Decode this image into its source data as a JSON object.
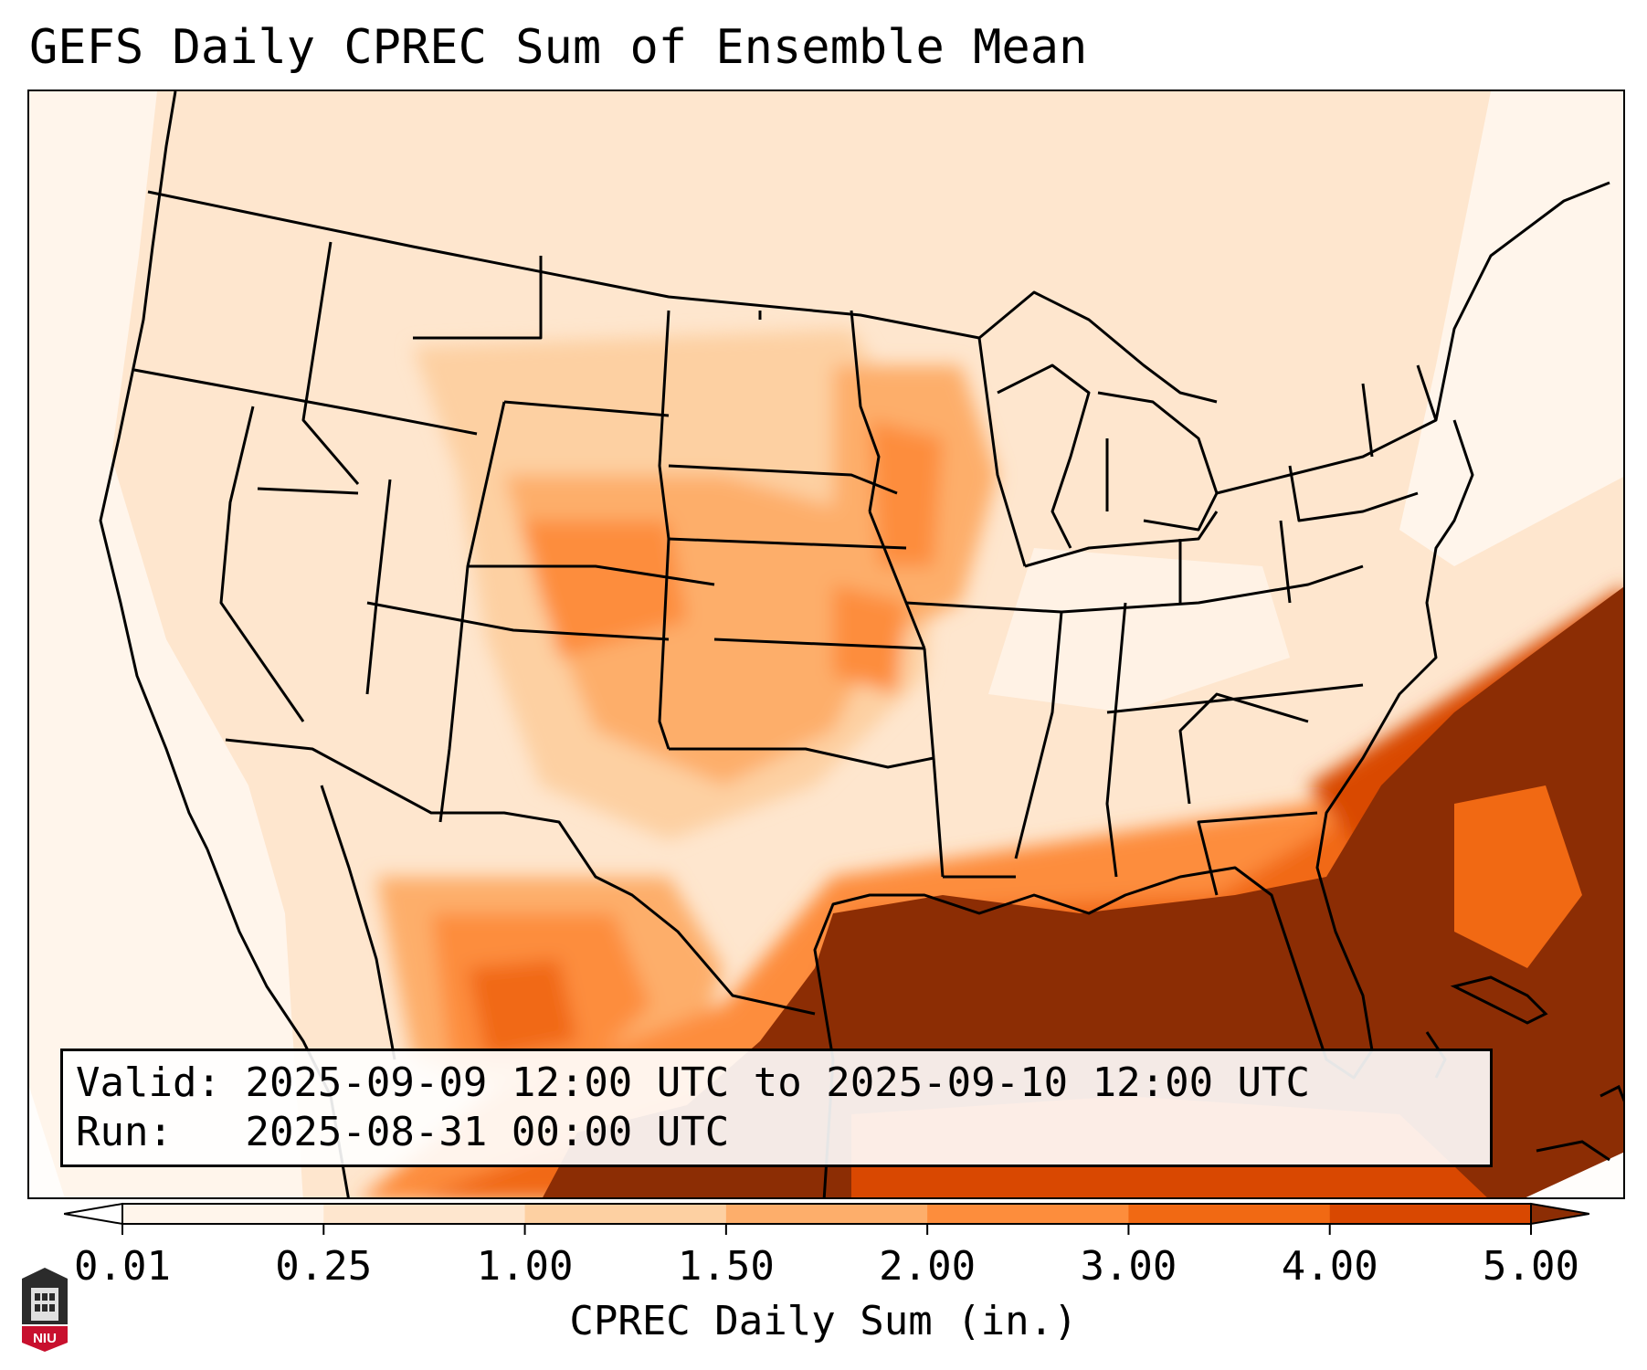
{
  "title": "GEFS Daily CPREC Sum of Ensemble Mean",
  "info": {
    "valid_label": "Valid:",
    "valid_value": "2025-09-09 12:00 UTC to 2025-09-10 12:00 UTC",
    "run_label": "Run:",
    "run_value": "2025-08-31 00:00 UTC"
  },
  "colorbar": {
    "label": "CPREC Daily Sum (in.)",
    "ticks": [
      "0.01",
      "0.25",
      "1.00",
      "1.50",
      "2.00",
      "3.00",
      "4.00",
      "5.00"
    ],
    "colors": [
      "#fff5eb",
      "#fee6ce",
      "#fdd0a2",
      "#fdae6b",
      "#fd8d3c",
      "#f16913",
      "#d94801",
      "#8c2d04"
    ]
  },
  "logo": {
    "text": "NIU",
    "name": "niu-logo"
  }
}
